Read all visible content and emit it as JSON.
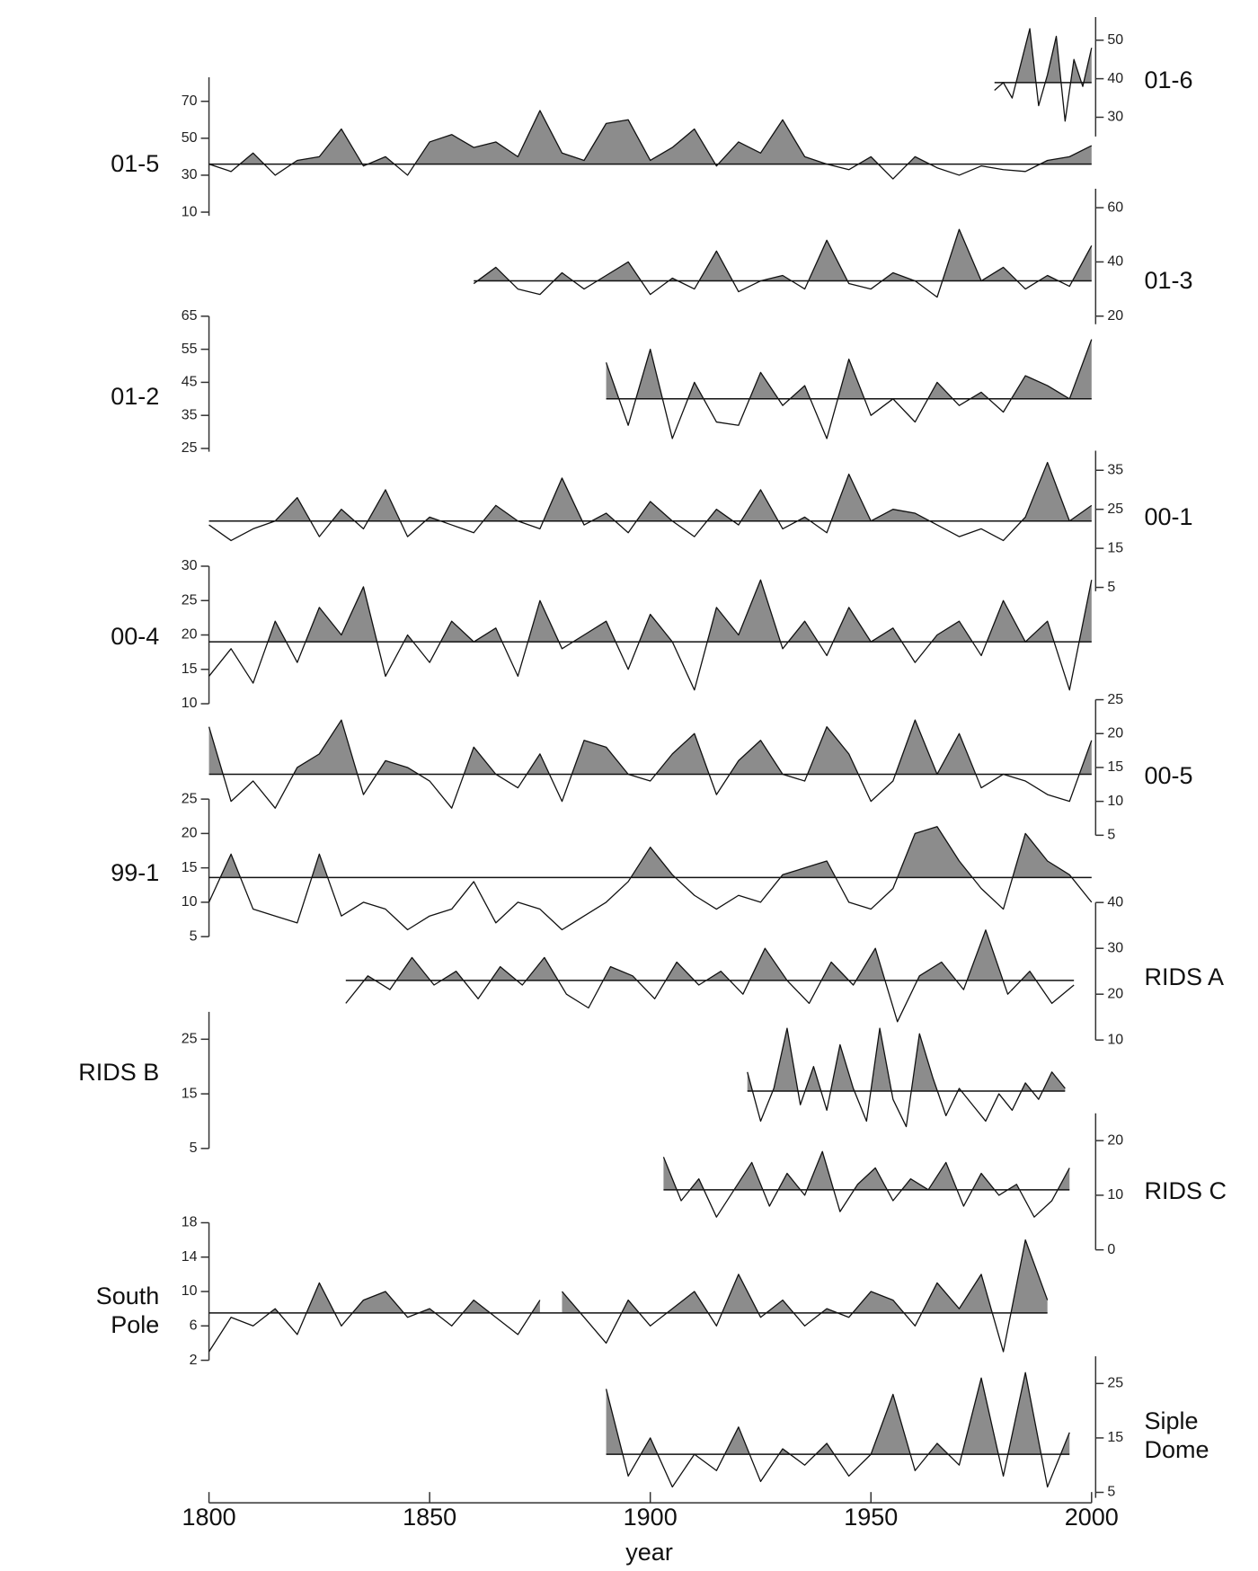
{
  "chart_data": {
    "type": "line",
    "xlabel": "year",
    "xlim": [
      1800,
      2000
    ],
    "xticks": [
      1800,
      1850,
      1900,
      1950,
      2000
    ],
    "fill_color": "#8c8c8c",
    "line_color": "#111111",
    "panels": [
      {
        "name": "01-6",
        "side": "right",
        "ylim": [
          25,
          56
        ],
        "yticks": [
          30,
          40,
          50
        ],
        "mean": 39,
        "x": [
          1978,
          1980,
          1982,
          1984,
          1986,
          1988,
          1990,
          1992,
          1994,
          1996,
          1998,
          2000
        ],
        "values": [
          37,
          39,
          35,
          44,
          53,
          33,
          41,
          51,
          29,
          45,
          38,
          48
        ]
      },
      {
        "name": "01-5",
        "side": "left",
        "ylim": [
          8,
          83
        ],
        "yticks": [
          10,
          30,
          50,
          70
        ],
        "mean": 36,
        "x": [
          1800,
          1805,
          1810,
          1815,
          1820,
          1825,
          1830,
          1835,
          1840,
          1845,
          1850,
          1855,
          1860,
          1865,
          1870,
          1875,
          1880,
          1885,
          1890,
          1895,
          1900,
          1905,
          1910,
          1915,
          1920,
          1925,
          1930,
          1935,
          1940,
          1945,
          1950,
          1955,
          1960,
          1965,
          1970,
          1975,
          1980,
          1985,
          1990,
          1995,
          2000
        ],
        "values": [
          36,
          32,
          42,
          30,
          38,
          40,
          55,
          35,
          40,
          30,
          48,
          52,
          45,
          48,
          40,
          65,
          42,
          38,
          58,
          60,
          38,
          45,
          55,
          35,
          48,
          42,
          60,
          40,
          36,
          33,
          40,
          28,
          40,
          34,
          30,
          35,
          33,
          32,
          38,
          40,
          46
        ]
      },
      {
        "name": "01-3",
        "side": "right",
        "ylim": [
          17,
          67
        ],
        "yticks": [
          20,
          40,
          60
        ],
        "mean": 33,
        "x": [
          1860,
          1865,
          1870,
          1875,
          1880,
          1885,
          1890,
          1895,
          1900,
          1905,
          1910,
          1915,
          1920,
          1925,
          1930,
          1935,
          1940,
          1945,
          1950,
          1955,
          1960,
          1965,
          1970,
          1975,
          1980,
          1985,
          1990,
          1995,
          2000
        ],
        "values": [
          32,
          38,
          30,
          28,
          36,
          30,
          35,
          40,
          28,
          34,
          30,
          44,
          29,
          33,
          35,
          30,
          48,
          32,
          30,
          36,
          33,
          27,
          52,
          33,
          38,
          30,
          35,
          31,
          46
        ]
      },
      {
        "name": "01-2",
        "side": "left",
        "ylim": [
          24,
          65
        ],
        "yticks": [
          25,
          35,
          45,
          55,
          65
        ],
        "mean": 40,
        "x": [
          1890,
          1895,
          1900,
          1905,
          1910,
          1915,
          1920,
          1925,
          1930,
          1935,
          1940,
          1945,
          1950,
          1955,
          1960,
          1965,
          1970,
          1975,
          1980,
          1985,
          1990,
          1995,
          2000
        ],
        "values": [
          51,
          32,
          55,
          28,
          45,
          33,
          32,
          48,
          38,
          44,
          28,
          52,
          35,
          40,
          33,
          45,
          38,
          42,
          36,
          47,
          44,
          40,
          58
        ]
      },
      {
        "name": "00-1",
        "side": "right",
        "ylim": [
          4,
          40
        ],
        "yticks": [
          5,
          15,
          25,
          35
        ],
        "mean": 22,
        "x": [
          1800,
          1805,
          1810,
          1815,
          1820,
          1825,
          1830,
          1835,
          1840,
          1845,
          1850,
          1855,
          1860,
          1865,
          1870,
          1875,
          1880,
          1885,
          1890,
          1895,
          1900,
          1905,
          1910,
          1915,
          1920,
          1925,
          1930,
          1935,
          1940,
          1945,
          1950,
          1955,
          1960,
          1965,
          1970,
          1975,
          1980,
          1985,
          1990,
          1995,
          2000
        ],
        "values": [
          21,
          17,
          20,
          22,
          28,
          18,
          25,
          20,
          30,
          18,
          23,
          21,
          19,
          26,
          22,
          20,
          33,
          21,
          24,
          19,
          27,
          22,
          18,
          25,
          21,
          30,
          20,
          23,
          19,
          34,
          22,
          25,
          24,
          21,
          18,
          20,
          17,
          23,
          37,
          22,
          26
        ]
      },
      {
        "name": "00-4",
        "side": "left",
        "ylim": [
          10,
          30
        ],
        "yticks": [
          10,
          15,
          20,
          25,
          30
        ],
        "mean": 19,
        "x": [
          1800,
          1805,
          1810,
          1815,
          1820,
          1825,
          1830,
          1835,
          1840,
          1845,
          1850,
          1855,
          1860,
          1865,
          1870,
          1875,
          1880,
          1885,
          1890,
          1895,
          1900,
          1905,
          1910,
          1915,
          1920,
          1925,
          1930,
          1935,
          1940,
          1945,
          1950,
          1955,
          1960,
          1965,
          1970,
          1975,
          1980,
          1985,
          1990,
          1995,
          2000
        ],
        "values": [
          14,
          18,
          13,
          22,
          16,
          24,
          20,
          27,
          14,
          20,
          16,
          22,
          19,
          21,
          14,
          25,
          18,
          20,
          22,
          15,
          23,
          19,
          12,
          24,
          20,
          28,
          18,
          22,
          17,
          24,
          19,
          21,
          16,
          20,
          22,
          17,
          25,
          19,
          22,
          12,
          28
        ]
      },
      {
        "name": "00-5",
        "side": "right",
        "ylim": [
          5,
          25
        ],
        "yticks": [
          5,
          10,
          15,
          20,
          25
        ],
        "mean": 14,
        "x": [
          1800,
          1805,
          1810,
          1815,
          1820,
          1825,
          1830,
          1835,
          1840,
          1845,
          1850,
          1855,
          1860,
          1865,
          1870,
          1875,
          1880,
          1885,
          1890,
          1895,
          1900,
          1905,
          1910,
          1915,
          1920,
          1925,
          1930,
          1935,
          1940,
          1945,
          1950,
          1955,
          1960,
          1965,
          1970,
          1975,
          1980,
          1985,
          1990,
          1995,
          2000
        ],
        "values": [
          21,
          10,
          13,
          9,
          15,
          17,
          22,
          11,
          16,
          15,
          13,
          9,
          18,
          14,
          12,
          17,
          10,
          19,
          18,
          14,
          13,
          17,
          20,
          11,
          16,
          19,
          14,
          13,
          21,
          17,
          10,
          13,
          22,
          14,
          20,
          12,
          14,
          13,
          11,
          10,
          19
        ]
      },
      {
        "name": "99-1",
        "side": "left",
        "ylim": [
          5,
          25
        ],
        "yticks": [
          5,
          10,
          15,
          20,
          25
        ],
        "mean": 13.6,
        "x": [
          1800,
          1805,
          1810,
          1815,
          1820,
          1825,
          1830,
          1835,
          1840,
          1845,
          1850,
          1855,
          1860,
          1865,
          1870,
          1875,
          1880,
          1885,
          1890,
          1895,
          1900,
          1905,
          1910,
          1915,
          1920,
          1925,
          1930,
          1935,
          1940,
          1945,
          1950,
          1955,
          1960,
          1965,
          1970,
          1975,
          1980,
          1985,
          1990,
          1995,
          2000
        ],
        "values": [
          10,
          17,
          9,
          8,
          7,
          17,
          8,
          10,
          9,
          6,
          8,
          9,
          13,
          7,
          10,
          9,
          6,
          8,
          10,
          13,
          18,
          14,
          11,
          9,
          11,
          10,
          14,
          15,
          16,
          10,
          9,
          12,
          20,
          21,
          16,
          12,
          9,
          20,
          16,
          14,
          10
        ]
      },
      {
        "name": "RIDS A",
        "side": "right",
        "ylim": [
          10,
          40
        ],
        "yticks": [
          10,
          20,
          30,
          40
        ],
        "mean": 23,
        "x": [
          1831,
          1836,
          1841,
          1846,
          1851,
          1856,
          1861,
          1866,
          1871,
          1876,
          1881,
          1886,
          1891,
          1896,
          1901,
          1906,
          1911,
          1916,
          1921,
          1926,
          1931,
          1936,
          1941,
          1946,
          1951,
          1956,
          1961,
          1966,
          1971,
          1976,
          1981,
          1986,
          1991,
          1996
        ],
        "values": [
          18,
          24,
          21,
          28,
          22,
          25,
          19,
          26,
          22,
          28,
          20,
          17,
          26,
          24,
          19,
          27,
          22,
          25,
          20,
          30,
          23,
          18,
          27,
          22,
          30,
          14,
          24,
          27,
          21,
          34,
          20,
          25,
          18,
          22
        ]
      },
      {
        "name": "RIDS B",
        "side": "left",
        "ylim": [
          5,
          30
        ],
        "yticks": [
          5,
          15,
          25
        ],
        "mean": 15.5,
        "x": [
          1922,
          1925,
          1928,
          1931,
          1934,
          1937,
          1940,
          1943,
          1946,
          1949,
          1952,
          1955,
          1958,
          1961,
          1964,
          1967,
          1970,
          1973,
          1976,
          1979,
          1982,
          1985,
          1988,
          1991,
          1994
        ],
        "values": [
          19,
          10,
          16,
          27,
          13,
          20,
          12,
          24,
          16,
          10,
          27,
          14,
          9,
          26,
          18,
          11,
          16,
          13,
          10,
          15,
          12,
          17,
          14,
          19,
          16
        ]
      },
      {
        "name": "RIDS C",
        "side": "right",
        "ylim": [
          0,
          25
        ],
        "yticks": [
          0,
          10,
          20
        ],
        "mean": 11,
        "x": [
          1903,
          1907,
          1911,
          1915,
          1919,
          1923,
          1927,
          1931,
          1935,
          1939,
          1943,
          1947,
          1951,
          1955,
          1959,
          1963,
          1967,
          1971,
          1975,
          1979,
          1983,
          1987,
          1991,
          1995
        ],
        "values": [
          17,
          9,
          13,
          6,
          11,
          16,
          8,
          14,
          10,
          18,
          7,
          12,
          15,
          9,
          13,
          11,
          16,
          8,
          14,
          10,
          12,
          6,
          9,
          15
        ]
      },
      {
        "name": "South Pole",
        "side": "left",
        "ylim": [
          2,
          18
        ],
        "yticks": [
          2,
          6,
          10,
          14,
          18
        ],
        "mean": 7.5,
        "x": [
          1800,
          1805,
          1810,
          1815,
          1820,
          1825,
          1830,
          1835,
          1840,
          1845,
          1850,
          1855,
          1860,
          1865,
          1870,
          1875,
          1878,
          1880,
          1885,
          1890,
          1895,
          1900,
          1905,
          1910,
          1915,
          1920,
          1925,
          1930,
          1935,
          1940,
          1945,
          1950,
          1955,
          1960,
          1965,
          1970,
          1975,
          1980,
          1985,
          1990
        ],
        "values": [
          3,
          7,
          6,
          8,
          5,
          11,
          6,
          9,
          10,
          7,
          8,
          6,
          9,
          7,
          5,
          9,
          null,
          10,
          7,
          4,
          9,
          6,
          8,
          10,
          6,
          12,
          7,
          9,
          6,
          8,
          7,
          10,
          9,
          6,
          11,
          8,
          12,
          3,
          16,
          9
        ]
      },
      {
        "name": "Siple Dome",
        "side": "right",
        "ylim": [
          4,
          30
        ],
        "yticks": [
          5,
          15,
          25
        ],
        "mean": 12,
        "x": [
          1890,
          1895,
          1900,
          1905,
          1910,
          1915,
          1920,
          1925,
          1930,
          1935,
          1940,
          1945,
          1950,
          1955,
          1960,
          1965,
          1970,
          1975,
          1980,
          1985,
          1990,
          1995
        ],
        "values": [
          24,
          8,
          15,
          6,
          12,
          9,
          17,
          7,
          13,
          10,
          14,
          8,
          12,
          23,
          9,
          14,
          10,
          26,
          8,
          27,
          6,
          16
        ]
      }
    ]
  }
}
